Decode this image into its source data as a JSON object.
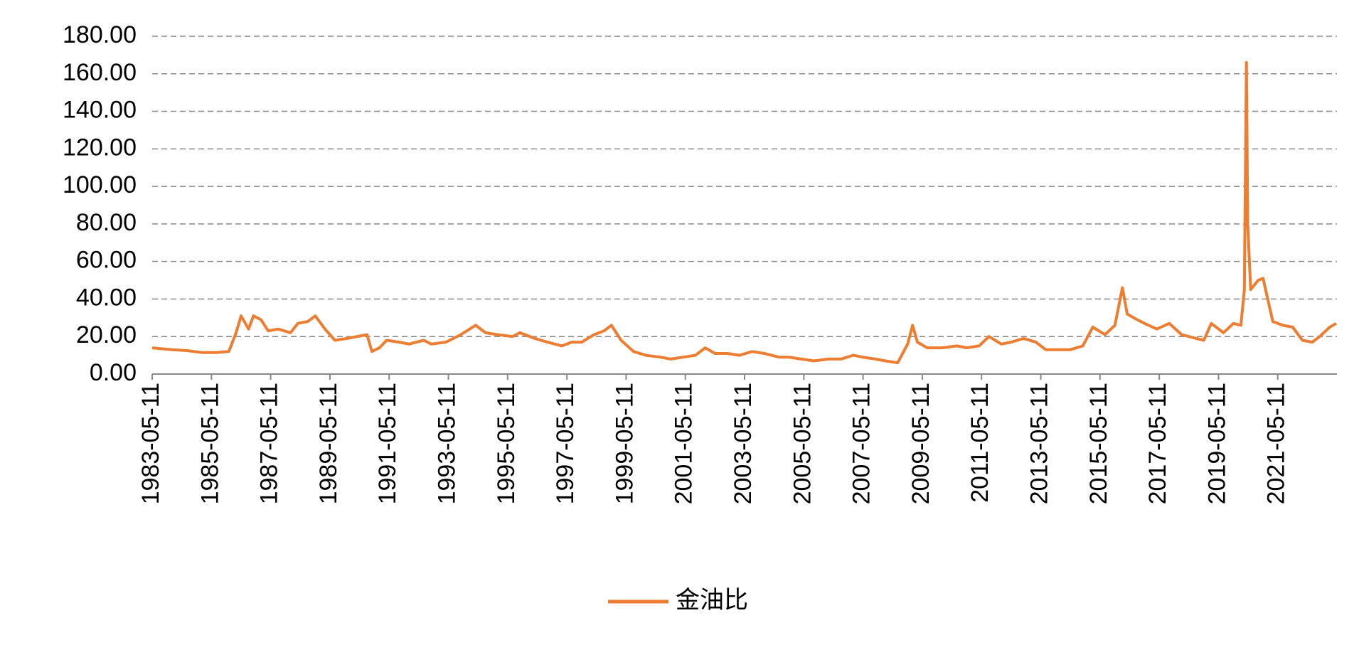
{
  "chart_data": {
    "type": "line",
    "x": [
      "1983-05-11",
      "1984-01-11",
      "1984-07-11",
      "1985-01-11",
      "1985-07-11",
      "1985-12-11",
      "1986-03-11",
      "1986-05-11",
      "1986-08-11",
      "1986-10-11",
      "1987-01-11",
      "1987-04-11",
      "1987-08-11",
      "1988-01-11",
      "1988-04-11",
      "1988-08-11",
      "1988-11-11",
      "1989-03-11",
      "1989-07-11",
      "1989-12-11",
      "1990-04-11",
      "1990-08-11",
      "1990-10-11",
      "1991-01-11",
      "1991-04-11",
      "1991-09-11",
      "1992-01-11",
      "1992-07-11",
      "1992-10-11",
      "1993-04-11",
      "1993-10-11",
      "1994-04-11",
      "1994-08-11",
      "1995-01-11",
      "1995-07-11",
      "1995-10-11",
      "1996-04-11",
      "1996-09-11",
      "1997-03-11",
      "1997-07-11",
      "1997-11-11",
      "1998-04-11",
      "1998-08-11",
      "1998-11-11",
      "1999-03-11",
      "1999-08-11",
      "2000-01-11",
      "2000-07-11",
      "2000-11-11",
      "2001-04-11",
      "2001-09-11",
      "2002-01-11",
      "2002-05-11",
      "2002-10-11",
      "2003-03-11",
      "2003-08-11",
      "2004-01-11",
      "2004-07-11",
      "2004-11-11",
      "2005-04-11",
      "2005-09-11",
      "2006-03-11",
      "2006-08-11",
      "2007-01-11",
      "2007-05-11",
      "2007-10-11",
      "2008-02-11",
      "2008-07-11",
      "2008-11-11",
      "2009-01-11",
      "2009-03-11",
      "2009-07-11",
      "2010-01-11",
      "2010-07-11",
      "2010-11-11",
      "2011-04-11",
      "2011-08-11",
      "2012-01-11",
      "2012-05-11",
      "2012-10-11",
      "2013-03-11",
      "2013-07-11",
      "2013-11-11",
      "2014-05-11",
      "2014-10-11",
      "2015-02-11",
      "2015-07-11",
      "2015-11-11",
      "2016-02-11",
      "2016-04-11",
      "2016-08-11",
      "2016-11-11",
      "2017-04-11",
      "2017-09-11",
      "2018-02-11",
      "2018-08-11",
      "2018-11-11",
      "2019-02-11",
      "2019-07-11",
      "2019-11-11",
      "2020-02-11",
      "2020-03-25",
      "2020-04-20",
      "2020-05-05",
      "2020-06-11",
      "2020-09-11",
      "2020-11-11",
      "2021-03-11",
      "2021-07-11",
      "2021-11-11",
      "2022-03-11",
      "2022-07-11",
      "2022-10-11",
      "2023-02-11",
      "2023-05-01"
    ],
    "series": [
      {
        "name": "金油比",
        "color": "#ED7D31",
        "values": [
          14,
          13,
          12.5,
          11.5,
          11.5,
          12,
          22,
          31,
          24,
          31,
          29,
          23,
          24,
          22,
          27,
          28,
          31,
          24,
          18,
          19,
          20,
          21,
          12,
          14,
          18,
          17,
          16,
          18,
          16,
          17,
          21,
          26,
          22,
          21,
          20,
          22,
          19,
          17,
          15,
          17,
          17,
          21,
          23,
          26,
          18,
          12,
          10,
          9,
          8,
          9,
          10,
          14,
          11,
          11,
          10,
          12,
          11,
          9,
          9,
          8,
          7,
          8,
          8,
          10,
          9,
          8,
          7,
          6,
          16,
          26,
          17,
          14,
          14,
          15,
          14,
          15,
          20,
          16,
          17,
          19,
          17,
          13,
          13,
          13,
          15,
          25,
          21,
          26,
          46,
          32,
          29,
          27,
          24,
          27,
          21,
          19,
          18,
          27,
          22,
          27,
          26,
          45,
          166,
          80,
          45,
          50,
          51,
          28,
          26,
          25,
          18,
          17,
          20,
          25,
          27
        ]
      }
    ],
    "xlim": [
      "1983-05-11",
      "2023-05-11"
    ],
    "xticks": [
      "1983-05-11",
      "1985-05-11",
      "1987-05-11",
      "1989-05-11",
      "1991-05-11",
      "1993-05-11",
      "1995-05-11",
      "1997-05-11",
      "1999-05-11",
      "2001-05-11",
      "2003-05-11",
      "2005-05-11",
      "2007-05-11",
      "2009-05-11",
      "2011-05-11",
      "2013-05-11",
      "2015-05-11",
      "2017-05-11",
      "2019-05-11",
      "2021-05-11"
    ],
    "ylim": [
      0,
      180
    ],
    "yticks": [
      {
        "value": 0,
        "label": "0.00"
      },
      {
        "value": 20,
        "label": "20.00"
      },
      {
        "value": 40,
        "label": "40.00"
      },
      {
        "value": 60,
        "label": "60.00"
      },
      {
        "value": 80,
        "label": "80.00"
      },
      {
        "value": 100,
        "label": "100.00"
      },
      {
        "value": 120,
        "label": "120.00"
      },
      {
        "value": 140,
        "label": "140.00"
      },
      {
        "value": 160,
        "label": "160.00"
      },
      {
        "value": 180,
        "label": "180.00"
      }
    ],
    "grid": true,
    "legend": "bottom"
  }
}
